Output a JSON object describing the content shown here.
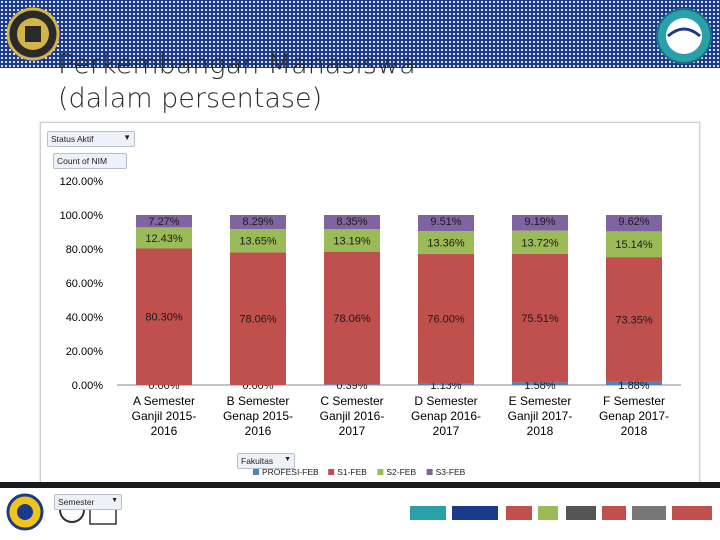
{
  "slide": {
    "title_line1": "Perkembangan Mahasiswa",
    "title_line2": "(dalam persentase)"
  },
  "pivot": {
    "filter_field": "Status Aktif",
    "values_field": "Count of NIM",
    "legend_field": "Fakultas",
    "axis_field": "Semester"
  },
  "colors": {
    "header": "#1b3a8c",
    "profesi": "#4f81bd",
    "s1": "#c0504d",
    "s2": "#9bbb59",
    "s3": "#8064a2"
  },
  "chart_data": {
    "type": "bar",
    "stacked": true,
    "categories": [
      [
        "A Semester",
        "Ganjil 2015-",
        "2016"
      ],
      [
        "B Semester",
        "Genap 2015-",
        "2016"
      ],
      [
        "C Semester",
        "Ganjil 2016-",
        "2017"
      ],
      [
        "D Semester",
        "Genap 2016-",
        "2017"
      ],
      [
        "E Semester",
        "Ganjil 2017-",
        "2018"
      ],
      [
        "F Semester",
        "Genap 2017-",
        "2018"
      ]
    ],
    "series": [
      {
        "name": "PROFESI-FEB",
        "values": [
          0.0,
          0.0,
          0.39,
          1.13,
          1.58,
          1.88
        ],
        "labels": [
          "0.00%",
          "0.00%",
          "0.39%",
          "1.13%",
          "1.58%",
          "1.88%"
        ]
      },
      {
        "name": "S1-FEB",
        "values": [
          80.3,
          78.06,
          78.06,
          76.0,
          75.51,
          73.35
        ],
        "labels": [
          "80.30%",
          "78.06%",
          "78.06%",
          "76.00%",
          "75.51%",
          "73.35%"
        ]
      },
      {
        "name": "S2-FEB",
        "values": [
          12.43,
          13.65,
          13.19,
          13.36,
          13.72,
          15.14
        ],
        "labels": [
          "12.43%",
          "13.65%",
          "13.19%",
          "13.36%",
          "13.72%",
          "15.14%"
        ]
      },
      {
        "name": "S3-FEB",
        "values": [
          7.27,
          8.29,
          8.35,
          9.51,
          9.19,
          9.62
        ],
        "labels": [
          "7.27%",
          "8.29%",
          "8.35%",
          "9.51%",
          "9.19%",
          "9.62%"
        ]
      }
    ],
    "yticks": [
      "0.00%",
      "20.00%",
      "40.00%",
      "60.00%",
      "80.00%",
      "100.00%",
      "120.00%"
    ],
    "ylim": [
      0,
      120
    ],
    "grid": false,
    "legend_position": "bottom"
  }
}
